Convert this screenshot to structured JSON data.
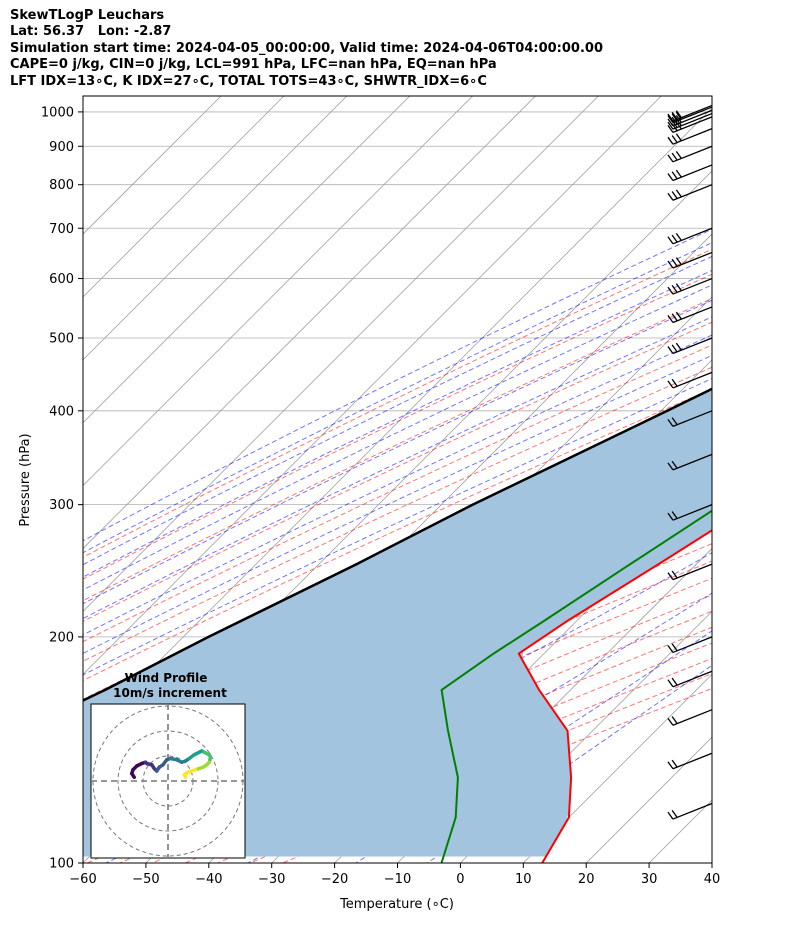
{
  "header": {
    "line1": "SkewTLogP Leuchars",
    "line2": "Lat: 56.37   Lon: -2.87",
    "line3": "Simulation start time: 2024-04-05_00:00:00, Valid time: 2024-04-06T04:00:00.00",
    "line4": "CAPE=0 j/kg, CIN=0 j/kg, LCL=991 hPa, LFC=nan hPa, EQ=nan hPa",
    "line5": "LFT IDX=13∘C, K IDX=27∘C, TOTAL TOTS=43∘C, SHWTR_IDX=6∘C"
  },
  "colors": {
    "temperature": "#ff0000",
    "dewpoint": "#008000",
    "parcel": "#000000",
    "cape_fill": "#a3c4de",
    "dry_adiabat": "#ff0000",
    "moist_adiabat": "#0000ff",
    "mixing_ratio": "#800080",
    "isotherm": "#a0a0a0"
  },
  "chart_data": {
    "type": "line",
    "xlabel": "Temperature (∘C)",
    "ylabel": "Pressure (hPa)",
    "xlim": [
      -60,
      40
    ],
    "ylim": [
      1050,
      100
    ],
    "y_scale": "log",
    "x_ticks": [
      "−60",
      "−50",
      "−40",
      "−30",
      "−20",
      "−10",
      "0",
      "10",
      "20",
      "30",
      "40"
    ],
    "y_ticks": [
      1000,
      900,
      800,
      700,
      600,
      500,
      400,
      300,
      200,
      100
    ],
    "grid": true,
    "series": [
      {
        "key": "temperature",
        "pressure": [
          992,
          950,
          900,
          850,
          800,
          700,
          600,
          550,
          500,
          450,
          400,
          350,
          300,
          250,
          210,
          190,
          170,
          150,
          130,
          115,
          100
        ],
        "values": [
          10,
          11.5,
          12,
          11.8,
          11,
          9.5,
          8,
          6.5,
          4.3,
          2,
          -1.5,
          -5.5,
          -10.5,
          -16,
          -21.5,
          -24,
          -15,
          -4,
          4,
          10,
          13
        ]
      },
      {
        "key": "dewpoint",
        "pressure": [
          992,
          950,
          900,
          850,
          800,
          700,
          600,
          550,
          500,
          450,
          400,
          350,
          300,
          250,
          210,
          190,
          170,
          150,
          130,
          115,
          100
        ],
        "values": [
          9.5,
          10.5,
          11,
          11.3,
          10.8,
          9.3,
          7.5,
          5.8,
          3,
          -0.5,
          -5,
          -10,
          -15.5,
          -20.5,
          -25.2,
          -28,
          -30.5,
          -23,
          -14,
          -8,
          -3
        ]
      },
      {
        "key": "parcel",
        "pressure": [
          992,
          950,
          900,
          850,
          800,
          700,
          600,
          500,
          400,
          300,
          250,
          200,
          170,
          150,
          130,
          115,
          100
        ],
        "values": [
          9.5,
          7.5,
          4.5,
          1.5,
          -1.5,
          -8.5,
          -17,
          -27,
          -39,
          -55,
          -64,
          -76,
          -84,
          -91,
          -98,
          -104,
          -111
        ]
      }
    ],
    "wind_barbs": {
      "pressure": [
        1020,
        1015,
        1005,
        995,
        985,
        950,
        900,
        850,
        800,
        700,
        650,
        600,
        550,
        500,
        450,
        400,
        350,
        300,
        250,
        200,
        180,
        160,
        140,
        120
      ]
    },
    "hodograph": {
      "title": "Wind Profile",
      "subtitle": "10m/s increment",
      "u": [
        -27,
        -29,
        -28,
        -25,
        -21,
        -18,
        -17,
        -13,
        -11,
        -9,
        -7,
        -4,
        -1,
        2,
        7,
        11,
        14,
        17,
        21,
        25,
        27,
        29,
        31,
        33,
        34,
        33,
        31,
        28,
        25,
        22,
        19,
        16,
        13,
        14
      ],
      "v": [
        3,
        6,
        9,
        12,
        14,
        15,
        14,
        13,
        10,
        8,
        11,
        13,
        17,
        18,
        17,
        15,
        16,
        18,
        21,
        23,
        24,
        23,
        22,
        21,
        19,
        15,
        13,
        11,
        10,
        9,
        8,
        7,
        5,
        3
      ]
    }
  }
}
